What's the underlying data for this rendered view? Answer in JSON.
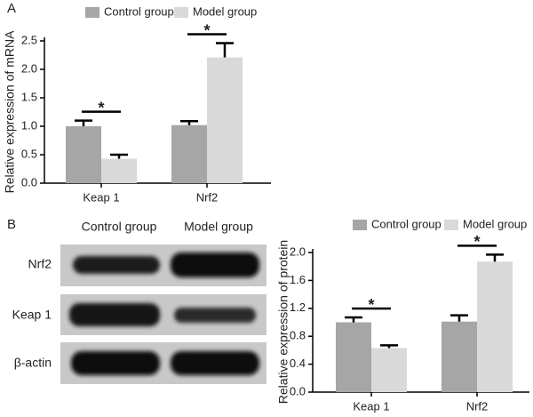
{
  "panels": [
    "A",
    "B"
  ],
  "blot": {
    "columns": [
      "Control group",
      "Model group"
    ],
    "rows": [
      "Nrf2",
      "Keap 1",
      "β-actin"
    ]
  },
  "chart_data": [
    {
      "type": "bar",
      "ylabel": "Relative expression of mRNA",
      "categories": [
        "Keap 1",
        "Nrf2"
      ],
      "series": [
        {
          "name": "Control group",
          "color": "#a6a6a6",
          "values": [
            1.0,
            1.02
          ],
          "errors": [
            0.1,
            0.07
          ]
        },
        {
          "name": "Model group",
          "color": "#d9d9d9",
          "values": [
            0.43,
            2.21
          ],
          "errors": [
            0.07,
            0.25
          ]
        }
      ],
      "annotations": [
        "*",
        "*"
      ],
      "ylim": [
        0,
        2.5
      ],
      "yticks": [
        {
          "value": 0,
          "label": "0.0"
        },
        0.5,
        {
          "value": 1,
          "label": "1.0"
        },
        1.5,
        {
          "value": 2,
          "label": "2.0"
        },
        2.5
      ]
    },
    {
      "type": "bar",
      "ylabel": "Relative expression of protein",
      "categories": [
        "Keap 1",
        "Nrf2"
      ],
      "series": [
        {
          "name": "Control group",
          "color": "#a6a6a6",
          "values": [
            1.0,
            1.01
          ],
          "errors": [
            0.07,
            0.09
          ]
        },
        {
          "name": "Model group",
          "color": "#d9d9d9",
          "values": [
            0.63,
            1.87
          ],
          "errors": [
            0.04,
            0.1
          ]
        }
      ],
      "annotations": [
        "*",
        "*"
      ],
      "ylim": [
        0,
        2.0
      ],
      "yticks": [
        {
          "value": 0,
          "label": "0.0"
        },
        0.4,
        0.8,
        1.2,
        1.6,
        {
          "value": 2,
          "label": "2.0"
        }
      ]
    }
  ]
}
